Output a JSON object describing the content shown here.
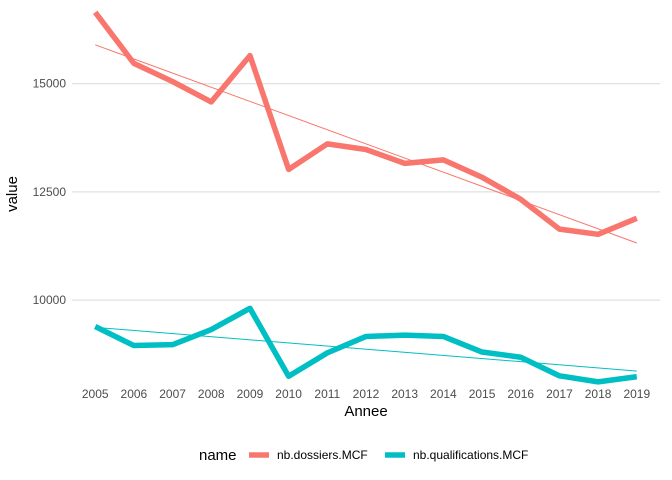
{
  "chart_data": {
    "type": "line",
    "title": "",
    "xlabel": "Annee",
    "ylabel": "value",
    "x": [
      2005,
      2006,
      2007,
      2008,
      2009,
      2010,
      2011,
      2012,
      2013,
      2014,
      2015,
      2016,
      2017,
      2018,
      2019
    ],
    "x_ticks": [
      "2005",
      "2006",
      "2007",
      "2008",
      "2009",
      "2010",
      "2011",
      "2012",
      "2013",
      "2014",
      "2015",
      "2016",
      "2017",
      "2018",
      "2019"
    ],
    "y_ticks": [
      10000,
      12500,
      15000
    ],
    "y_tick_labels": [
      "10000",
      "12500",
      "15000"
    ],
    "ylim": [
      8200,
      16750
    ],
    "grid": true,
    "legend_position": "bottom",
    "legend_title": "name",
    "series": [
      {
        "name": "nb.dossiers.MCF",
        "color": "#F8766D",
        "values": [
          16650,
          15470,
          15050,
          14580,
          15650,
          13020,
          13610,
          13480,
          13160,
          13240,
          12840,
          12330,
          11640,
          11520,
          11890
        ],
        "trend": [
          15900,
          11320
        ]
      },
      {
        "name": "nb.qualifications.MCF",
        "color": "#00BFC4",
        "values": [
          9390,
          8950,
          8970,
          9320,
          9810,
          8240,
          8780,
          9160,
          9190,
          9160,
          8800,
          8680,
          8250,
          8110,
          8230
        ],
        "trend": [
          9370,
          8360
        ]
      }
    ]
  }
}
